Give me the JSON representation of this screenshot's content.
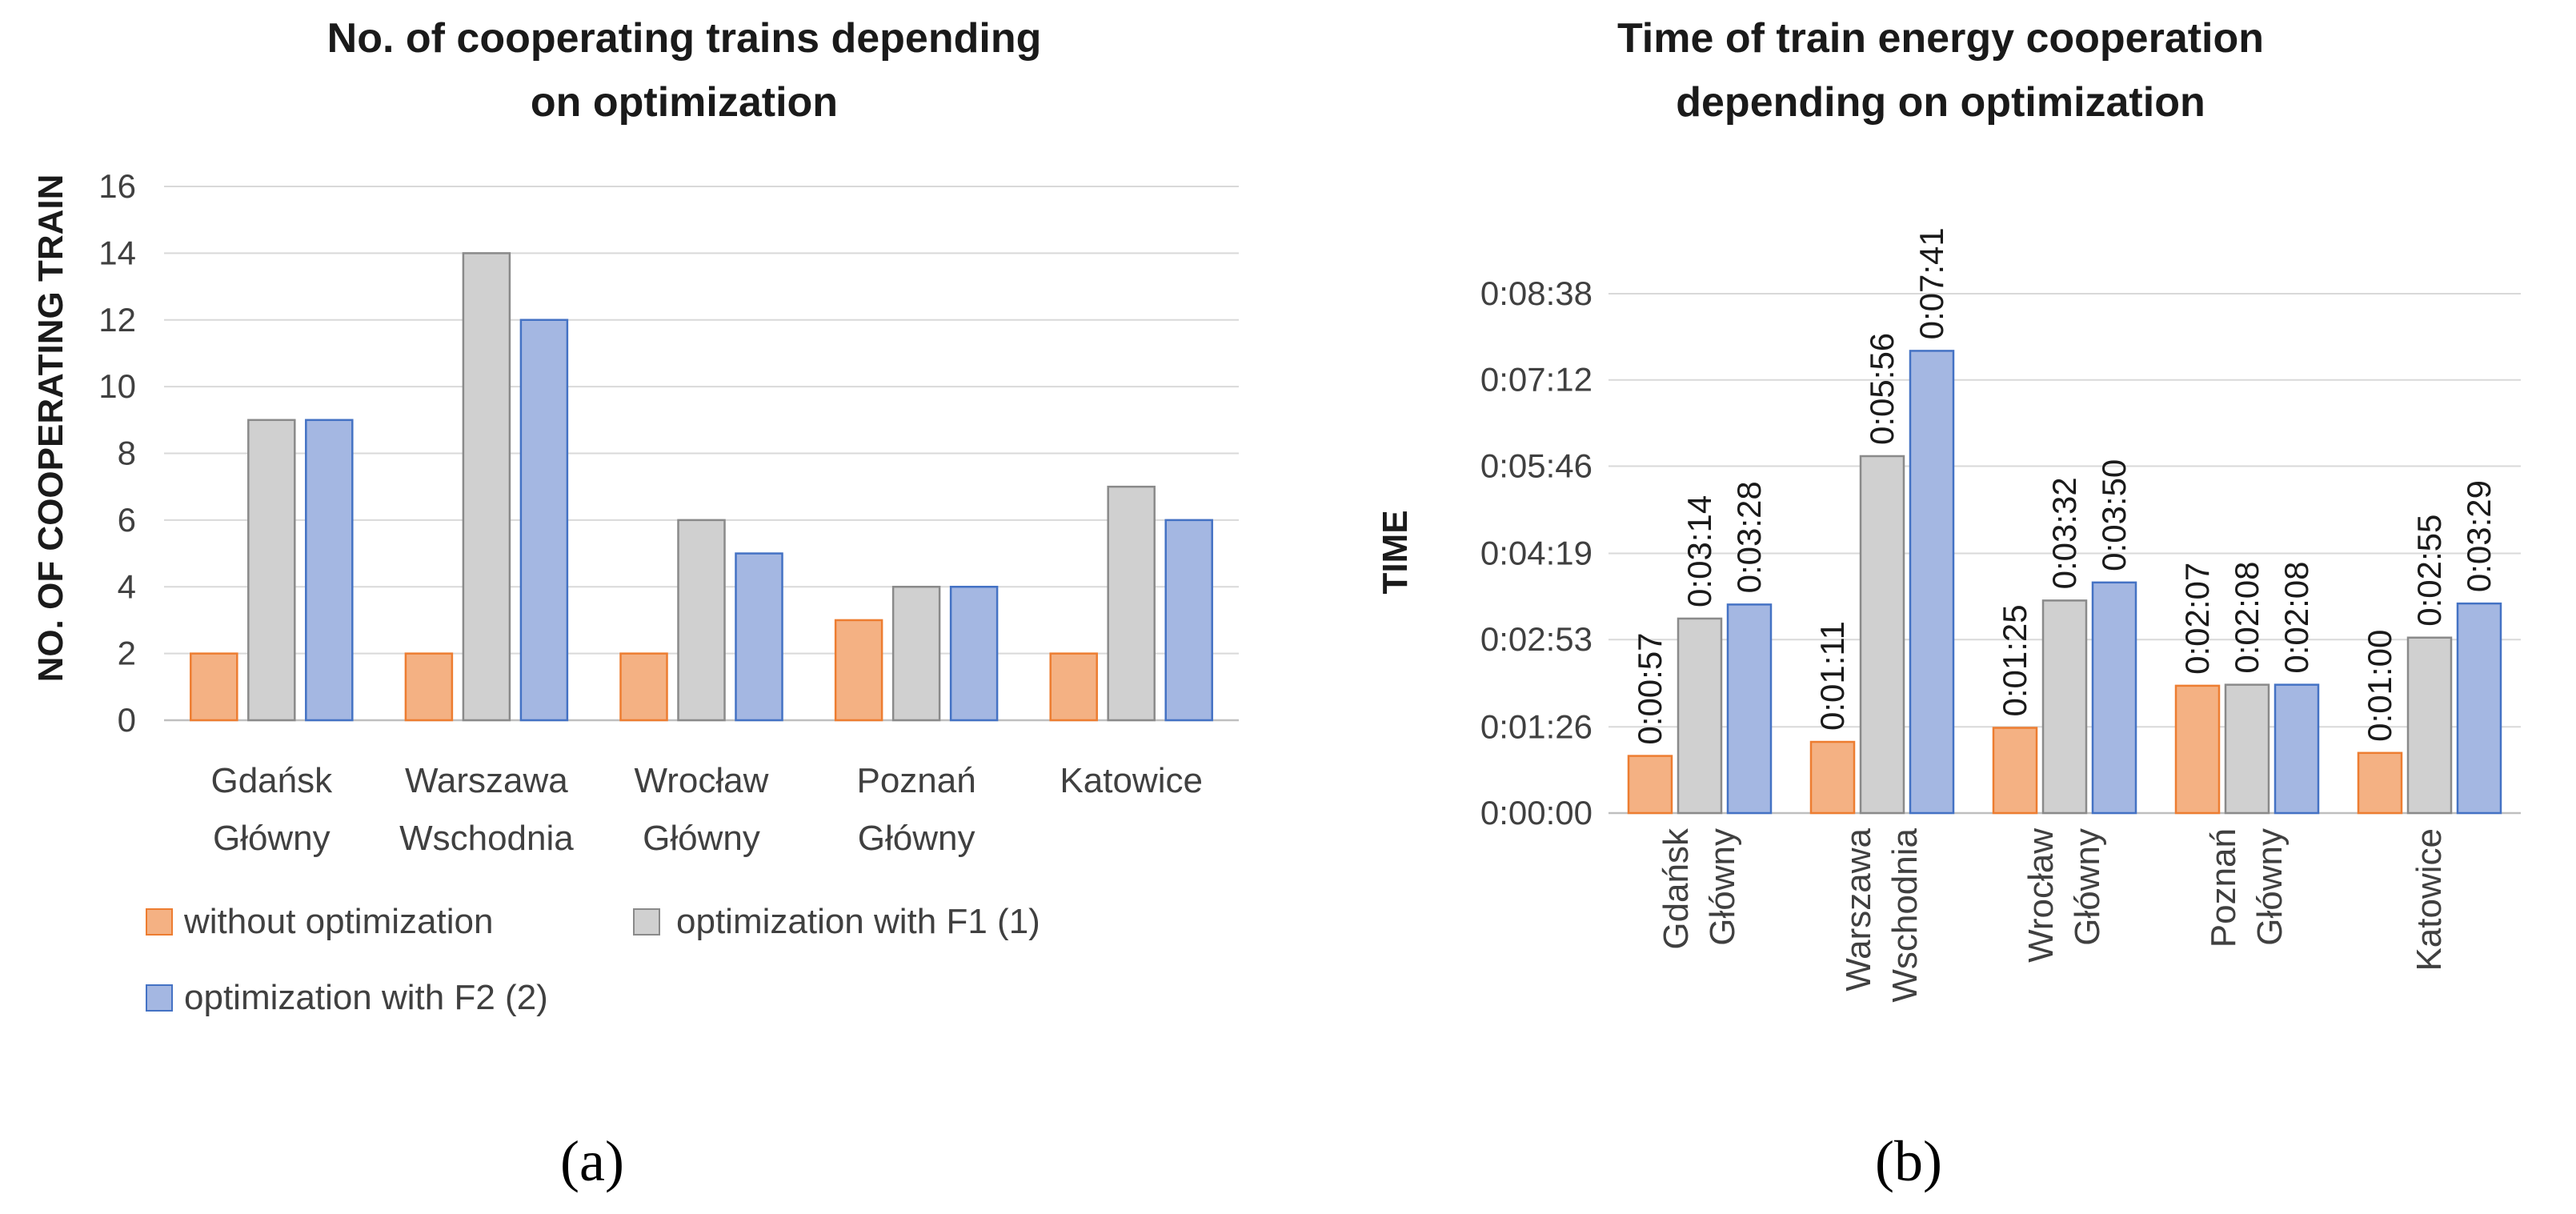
{
  "chart_data": [
    {
      "type": "bar",
      "panel_label": "(a)",
      "title_lines": [
        "No. of cooperating trains depending",
        "on optimization"
      ],
      "xlabel": "",
      "ylabel": "NO. OF COOPERATING TRAIN",
      "ylim": [
        0,
        16
      ],
      "yticks": [
        "0",
        "2",
        "4",
        "6",
        "8",
        "10",
        "12",
        "14",
        "16"
      ],
      "categories": [
        [
          "Gdańsk",
          "Główny"
        ],
        [
          "Warszawa",
          "Wschodnia"
        ],
        [
          "Wrocław",
          "Główny"
        ],
        [
          "Poznań",
          "Główny"
        ],
        [
          "Katowice"
        ]
      ],
      "series": [
        {
          "name": "without optimization",
          "values": [
            2,
            2,
            2,
            3,
            2
          ]
        },
        {
          "name": "optimization with F1 (1)",
          "values": [
            9,
            14,
            6,
            4,
            7
          ]
        },
        {
          "name": "optimization with F2 (2)",
          "values": [
            9,
            12,
            5,
            4,
            6
          ]
        }
      ],
      "grid": true,
      "legend_position": "bottom"
    },
    {
      "type": "bar",
      "panel_label": "(b)",
      "title_lines": [
        "Time of train energy cooperation",
        "depending on optimization"
      ],
      "xlabel": "",
      "ylabel": "TIME",
      "ylim_seconds": [
        0,
        518
      ],
      "yticks": [
        "0:00:00",
        "0:01:26",
        "0:02:53",
        "0:04:19",
        "0:05:46",
        "0:07:12",
        "0:08:38"
      ],
      "ytick_seconds": [
        0,
        86,
        173,
        259,
        346,
        432,
        518
      ],
      "categories": [
        [
          "Gdańsk",
          "Główny"
        ],
        [
          "Warszawa",
          "Wschodnia"
        ],
        [
          "Wrocław",
          "Główny"
        ],
        [
          "Poznań",
          "Główny"
        ],
        [
          "Katowice"
        ]
      ],
      "series": [
        {
          "name": "without optimization",
          "values_seconds": [
            57,
            71,
            85,
            127,
            60
          ],
          "labels": [
            "0:00:57",
            "0:01:11",
            "0:01:25",
            "0:02:07",
            "0:01:00"
          ]
        },
        {
          "name": "optimization with F1 (1)",
          "values_seconds": [
            194,
            356,
            212,
            128,
            175
          ],
          "labels": [
            "0:03:14",
            "0:05:56",
            "0:03:32",
            "0:02:08",
            "0:02:55"
          ]
        },
        {
          "name": "optimization with F2 (2)",
          "values_seconds": [
            208,
            461,
            230,
            128,
            209
          ],
          "labels": [
            "0:03:28",
            "0:07:41",
            "0:03:50",
            "0:02:08",
            "0:03:29"
          ]
        }
      ],
      "grid": true
    }
  ],
  "colors": {
    "series_fill": [
      "#f4b183",
      "#d0d0d0",
      "#a4b7e2"
    ],
    "series_stroke": [
      "#ed7d31",
      "#8a8a8a",
      "#4472c4"
    ]
  }
}
